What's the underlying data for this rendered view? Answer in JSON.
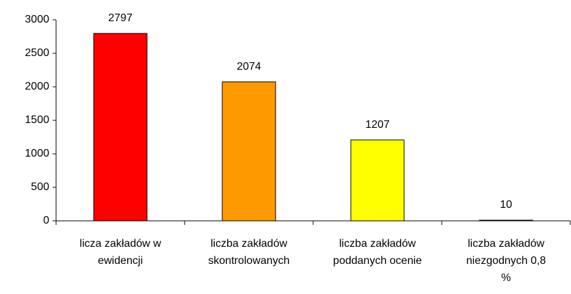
{
  "chart_data": {
    "type": "bar",
    "categories": [
      [
        "licza zakładów w",
        "ewidencji"
      ],
      [
        "liczba zakładów",
        "skontrolowanych"
      ],
      [
        "liczba zakładów",
        "poddanych  ocenie"
      ],
      [
        "liczba zakładów",
        "niezgodnych 0,8",
        "%"
      ]
    ],
    "values": [
      2797,
      2074,
      1207,
      10
    ],
    "colors": [
      "#ff0000",
      "#ff9900",
      "#ffff00",
      "#333300"
    ],
    "ylim": [
      0,
      3000
    ],
    "yticks": [
      0,
      500,
      1000,
      1500,
      2000,
      2500,
      3000
    ],
    "grid": false
  }
}
